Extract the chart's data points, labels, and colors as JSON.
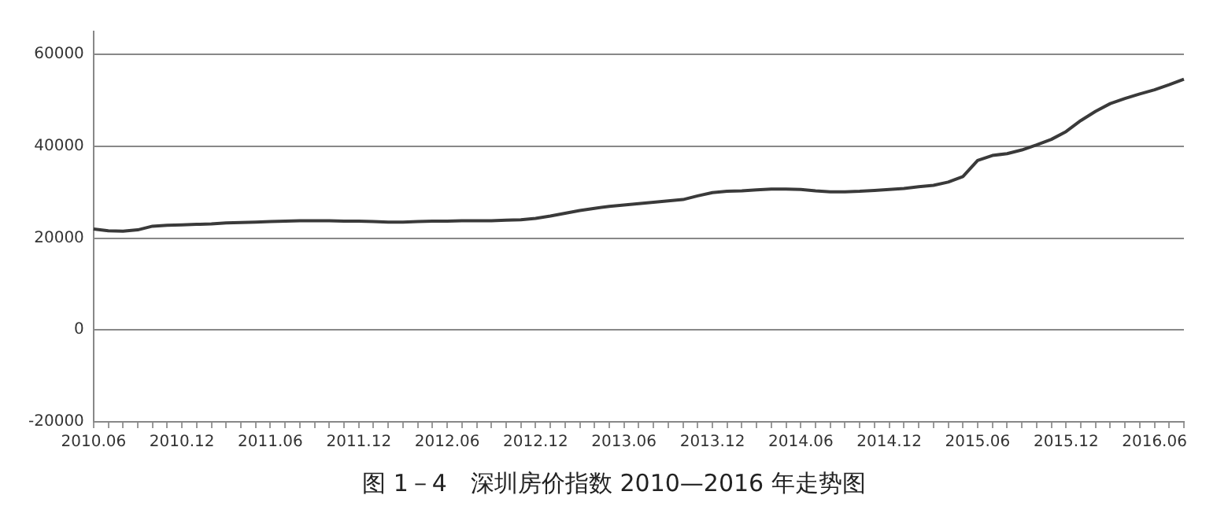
{
  "chart_data": {
    "type": "line",
    "title": "图 1－4　深圳房价指数 2010—2016 年走势图",
    "categories": [
      "2010.06",
      null,
      null,
      null,
      null,
      null,
      "2010.12",
      null,
      null,
      null,
      null,
      null,
      "2011.06",
      null,
      null,
      null,
      null,
      null,
      "2011.12",
      null,
      null,
      null,
      null,
      null,
      "2012.06",
      null,
      null,
      null,
      null,
      null,
      "2012.12",
      null,
      null,
      null,
      null,
      null,
      "2013.06",
      null,
      null,
      null,
      null,
      null,
      "2013.12",
      null,
      null,
      null,
      null,
      null,
      "2014.06",
      null,
      null,
      null,
      null,
      null,
      "2014.12",
      null,
      null,
      null,
      null,
      null,
      "2015.06",
      null,
      null,
      null,
      null,
      null,
      "2015.12",
      null,
      null,
      null,
      null,
      null,
      "2016.06",
      null,
      null
    ],
    "series": [
      {
        "color": "#3a3a3a",
        "values": [
          22000,
          21600,
          21500,
          21800,
          22600,
          22800,
          22900,
          23000,
          23100,
          23300,
          23400,
          23500,
          23600,
          23700,
          23800,
          23800,
          23800,
          23700,
          23700,
          23600,
          23500,
          23500,
          23600,
          23700,
          23700,
          23800,
          23800,
          23800,
          23900,
          24000,
          24300,
          24800,
          25400,
          26000,
          26500,
          26900,
          27200,
          27500,
          27800,
          28100,
          28400,
          29200,
          29900,
          30200,
          30300,
          30500,
          30700,
          30700,
          30600,
          30300,
          30100,
          30100,
          30200,
          30400,
          30600,
          30800,
          31200,
          31500,
          32200,
          33400,
          36900,
          38000,
          38400,
          39200,
          40300,
          41500,
          43200,
          45600,
          47600,
          49300,
          50400,
          51400,
          52300,
          53400,
          54600
        ]
      }
    ],
    "ylim": [
      -20000,
      65000
    ],
    "yticks": [
      -20000,
      0,
      20000,
      40000,
      60000
    ],
    "grid": "y",
    "legend": false,
    "marker": "none",
    "line_style": "solid"
  }
}
